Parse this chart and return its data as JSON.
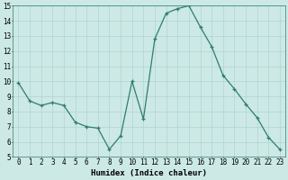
{
  "xlabel": "Humidex (Indice chaleur)",
  "x": [
    0,
    1,
    2,
    3,
    4,
    5,
    6,
    7,
    8,
    9,
    10,
    11,
    12,
    13,
    14,
    15,
    16,
    17,
    18,
    19,
    20,
    21,
    22,
    23
  ],
  "y": [
    9.9,
    8.7,
    8.4,
    8.6,
    8.4,
    7.3,
    7.0,
    6.9,
    5.5,
    6.4,
    10.0,
    7.5,
    12.8,
    14.5,
    14.8,
    15.0,
    13.6,
    12.3,
    10.4,
    9.5,
    8.5,
    7.6,
    6.3,
    5.5
  ],
  "ylim": [
    5,
    15
  ],
  "yticks": [
    5,
    6,
    7,
    8,
    9,
    10,
    11,
    12,
    13,
    14,
    15
  ],
  "line_color": "#2e7d6e",
  "marker": "+",
  "bg_color": "#cce9e5",
  "grid_color": "#b0d4d0",
  "xlabel_fontsize": 6.5,
  "tick_fontsize": 5.5
}
